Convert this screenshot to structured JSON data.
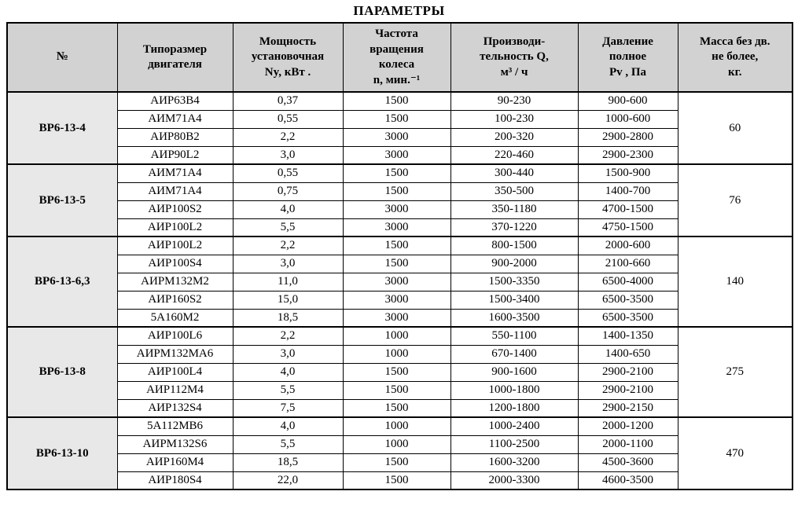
{
  "title": "ПАРАМЕТРЫ",
  "colors": {
    "header_bg": "#d2d2d2",
    "group_cell_bg": "#e8e8e8",
    "border": "#000000",
    "row_bg": "#ffffff"
  },
  "table": {
    "columns": [
      {
        "id": "num",
        "label": "№"
      },
      {
        "id": "motor",
        "label": "Типоразмер\nдвигателя"
      },
      {
        "id": "power",
        "label": "Мощность\nустановочная\nNy, кВт ."
      },
      {
        "id": "speed",
        "label": "Частота\nвращения\nколеса\nn, мин.⁻¹"
      },
      {
        "id": "flow",
        "label": "Производи-\nтельность Q,\nм³ / ч"
      },
      {
        "id": "pressure",
        "label": "Давление\nполное\nPv , Па"
      },
      {
        "id": "mass",
        "label": "Масса без дв.\nне более,\nкг."
      }
    ],
    "groups": [
      {
        "name": "ВР6-13-4",
        "mass": "60",
        "rows": [
          {
            "motor": "АИР63В4",
            "power": "0,37",
            "speed": "1500",
            "flow": "90-230",
            "pressure": "900-600"
          },
          {
            "motor": "АИМ71А4",
            "power": "0,55",
            "speed": "1500",
            "flow": "100-230",
            "pressure": "1000-600"
          },
          {
            "motor": "АИР80В2",
            "power": "2,2",
            "speed": "3000",
            "flow": "200-320",
            "pressure": "2900-2800"
          },
          {
            "motor": "АИР90L2",
            "power": "3,0",
            "speed": "3000",
            "flow": "220-460",
            "pressure": "2900-2300"
          }
        ]
      },
      {
        "name": "ВР6-13-5",
        "mass": "76",
        "rows": [
          {
            "motor": "АИМ71А4",
            "power": "0,55",
            "speed": "1500",
            "flow": "300-440",
            "pressure": "1500-900"
          },
          {
            "motor": "АИМ71А4",
            "power": "0,75",
            "speed": "1500",
            "flow": "350-500",
            "pressure": "1400-700"
          },
          {
            "motor": "АИР100S2",
            "power": "4,0",
            "speed": "3000",
            "flow": "350-1180",
            "pressure": "4700-1500"
          },
          {
            "motor": "АИР100L2",
            "power": "5,5",
            "speed": "3000",
            "flow": "370-1220",
            "pressure": "4750-1500"
          }
        ]
      },
      {
        "name": "ВР6-13-6,3",
        "mass": "140",
        "rows": [
          {
            "motor": "АИР100L2",
            "power": "2,2",
            "speed": "1500",
            "flow": "800-1500",
            "pressure": "2000-600"
          },
          {
            "motor": "АИР100S4",
            "power": "3,0",
            "speed": "1500",
            "flow": "900-2000",
            "pressure": "2100-660"
          },
          {
            "motor": "АИРМ132М2",
            "power": "11,0",
            "speed": "3000",
            "flow": "1500-3350",
            "pressure": "6500-4000"
          },
          {
            "motor": "АИР160S2",
            "power": "15,0",
            "speed": "3000",
            "flow": "1500-3400",
            "pressure": "6500-3500"
          },
          {
            "motor": "5А160М2",
            "power": "18,5",
            "speed": "3000",
            "flow": "1600-3500",
            "pressure": "6500-3500"
          }
        ]
      },
      {
        "name": "ВР6-13-8",
        "mass": "275",
        "rows": [
          {
            "motor": "АИР100L6",
            "power": "2,2",
            "speed": "1000",
            "flow": "550-1100",
            "pressure": "1400-1350"
          },
          {
            "motor": "АИРМ132МА6",
            "power": "3,0",
            "speed": "1000",
            "flow": "670-1400",
            "pressure": "1400-650"
          },
          {
            "motor": "АИР100L4",
            "power": "4,0",
            "speed": "1500",
            "flow": "900-1600",
            "pressure": "2900-2100"
          },
          {
            "motor": "АИР112М4",
            "power": "5,5",
            "speed": "1500",
            "flow": "1000-1800",
            "pressure": "2900-2100"
          },
          {
            "motor": "АИР132S4",
            "power": "7,5",
            "speed": "1500",
            "flow": "1200-1800",
            "pressure": "2900-2150"
          }
        ]
      },
      {
        "name": "ВР6-13-10",
        "mass": "470",
        "rows": [
          {
            "motor": "5А112МВ6",
            "power": "4,0",
            "speed": "1000",
            "flow": "1000-2400",
            "pressure": "2000-1200"
          },
          {
            "motor": "АИРМ132S6",
            "power": "5,5",
            "speed": "1000",
            "flow": "1100-2500",
            "pressure": "2000-1100"
          },
          {
            "motor": "АИР160М4",
            "power": "18,5",
            "speed": "1500",
            "flow": "1600-3200",
            "pressure": "4500-3600"
          },
          {
            "motor": "АИР180S4",
            "power": "22,0",
            "speed": "1500",
            "flow": "2000-3300",
            "pressure": "4600-3500"
          }
        ]
      }
    ]
  }
}
